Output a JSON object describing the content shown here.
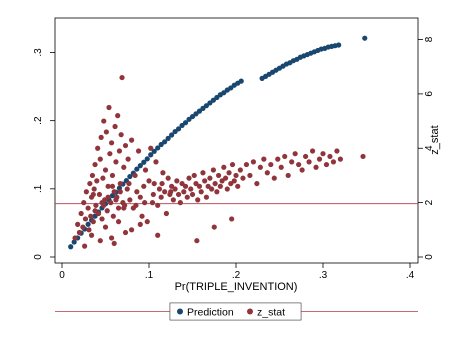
{
  "chart_data": {
    "type": "scatter",
    "title": "",
    "xlabel": "Pr(TRIPLE_INVENTION)",
    "ylabel_left": "",
    "ylabel_right": "z_stat",
    "xlim": [
      0,
      0.4
    ],
    "ylim_left": [
      0,
      0.333
    ],
    "ylim_right": [
      0,
      8.35
    ],
    "x_ticks": [
      {
        "v": 0,
        "label": "0"
      },
      {
        "v": 0.1,
        "label": ".1"
      },
      {
        "v": 0.2,
        "label": ".2"
      },
      {
        "v": 0.3,
        "label": ".3"
      },
      {
        "v": 0.4,
        "label": ".4"
      }
    ],
    "y_left_ticks": [
      {
        "v": 0,
        "label": "0"
      },
      {
        "v": 0.1,
        "label": ".1"
      },
      {
        "v": 0.2,
        "label": ".2"
      },
      {
        "v": 0.3,
        "label": ".3"
      }
    ],
    "y_right_ticks": [
      {
        "v": 0,
        "label": "0"
      },
      {
        "v": 2,
        "label": "2"
      },
      {
        "v": 4,
        "label": "4"
      },
      {
        "v": 6,
        "label": "6"
      },
      {
        "v": 8,
        "label": "8"
      }
    ],
    "reference_line": {
      "axis": "right",
      "value": 1.96,
      "color": "#b03a48"
    },
    "grid": false,
    "legend_position": "bottom",
    "series": [
      {
        "name": "Prediction",
        "axis": "left",
        "color": "#1a476f",
        "points": [
          [
            0.01,
            0.015
          ],
          [
            0.014,
            0.022
          ],
          [
            0.018,
            0.028
          ],
          [
            0.022,
            0.035
          ],
          [
            0.026,
            0.041
          ],
          [
            0.03,
            0.048
          ],
          [
            0.034,
            0.054
          ],
          [
            0.038,
            0.06
          ],
          [
            0.042,
            0.066
          ],
          [
            0.046,
            0.072
          ],
          [
            0.05,
            0.078
          ],
          [
            0.054,
            0.084
          ],
          [
            0.058,
            0.09
          ],
          [
            0.062,
            0.095
          ],
          [
            0.066,
            0.101
          ],
          [
            0.07,
            0.107
          ],
          [
            0.074,
            0.112
          ],
          [
            0.078,
            0.118
          ],
          [
            0.082,
            0.123
          ],
          [
            0.086,
            0.129
          ],
          [
            0.09,
            0.134
          ],
          [
            0.094,
            0.139
          ],
          [
            0.098,
            0.144
          ],
          [
            0.102,
            0.15
          ],
          [
            0.106,
            0.155
          ],
          [
            0.11,
            0.16
          ],
          [
            0.114,
            0.165
          ],
          [
            0.118,
            0.169
          ],
          [
            0.122,
            0.174
          ],
          [
            0.126,
            0.179
          ],
          [
            0.13,
            0.184
          ],
          [
            0.134,
            0.188
          ],
          [
            0.138,
            0.193
          ],
          [
            0.142,
            0.197
          ],
          [
            0.146,
            0.202
          ],
          [
            0.15,
            0.206
          ],
          [
            0.154,
            0.21
          ],
          [
            0.158,
            0.214
          ],
          [
            0.162,
            0.218
          ],
          [
            0.166,
            0.222
          ],
          [
            0.17,
            0.226
          ],
          [
            0.174,
            0.23
          ],
          [
            0.178,
            0.234
          ],
          [
            0.182,
            0.238
          ],
          [
            0.186,
            0.241
          ],
          [
            0.19,
            0.245
          ],
          [
            0.194,
            0.248
          ],
          [
            0.198,
            0.252
          ],
          [
            0.202,
            0.255
          ],
          [
            0.206,
            0.258
          ],
          [
            0.23,
            0.262
          ],
          [
            0.234,
            0.265
          ],
          [
            0.238,
            0.268
          ],
          [
            0.242,
            0.271
          ],
          [
            0.246,
            0.274
          ],
          [
            0.25,
            0.277
          ],
          [
            0.254,
            0.28
          ],
          [
            0.258,
            0.283
          ],
          [
            0.262,
            0.285
          ],
          [
            0.266,
            0.288
          ],
          [
            0.27,
            0.29
          ],
          [
            0.274,
            0.293
          ],
          [
            0.278,
            0.295
          ],
          [
            0.282,
            0.297
          ],
          [
            0.286,
            0.299
          ],
          [
            0.29,
            0.301
          ],
          [
            0.294,
            0.303
          ],
          [
            0.298,
            0.305
          ],
          [
            0.302,
            0.306
          ],
          [
            0.306,
            0.308
          ],
          [
            0.31,
            0.309
          ],
          [
            0.314,
            0.31
          ],
          [
            0.318,
            0.311
          ],
          [
            0.348,
            0.321
          ]
        ]
      },
      {
        "name": "z_stat",
        "axis": "right",
        "color": "#90353b",
        "points": [
          [
            0.015,
            0.7
          ],
          [
            0.018,
            1.2
          ],
          [
            0.02,
            0.9
          ],
          [
            0.022,
            1.6
          ],
          [
            0.024,
            1.1
          ],
          [
            0.025,
            2.0
          ],
          [
            0.027,
            1.4
          ],
          [
            0.028,
            2.4
          ],
          [
            0.03,
            1.8
          ],
          [
            0.031,
            1.0
          ],
          [
            0.032,
            2.7
          ],
          [
            0.033,
            1.5
          ],
          [
            0.034,
            2.2
          ],
          [
            0.035,
            3.0
          ],
          [
            0.036,
            1.3
          ],
          [
            0.037,
            2.5
          ],
          [
            0.038,
            3.4
          ],
          [
            0.039,
            1.9
          ],
          [
            0.04,
            2.8
          ],
          [
            0.041,
            4.0
          ],
          [
            0.042,
            1.6
          ],
          [
            0.043,
            2.3
          ],
          [
            0.044,
            3.6
          ],
          [
            0.045,
            4.4
          ],
          [
            0.046,
            1.4
          ],
          [
            0.047,
            2.9
          ],
          [
            0.048,
            5.0
          ],
          [
            0.049,
            2.1
          ],
          [
            0.05,
            3.2
          ],
          [
            0.051,
            4.6
          ],
          [
            0.052,
            1.7
          ],
          [
            0.053,
            2.6
          ],
          [
            0.054,
            5.5
          ],
          [
            0.055,
            3.8
          ],
          [
            0.056,
            2.0
          ],
          [
            0.057,
            4.2
          ],
          [
            0.058,
            3.0
          ],
          [
            0.059,
            1.5
          ],
          [
            0.06,
            2.4
          ],
          [
            0.061,
            4.8
          ],
          [
            0.062,
            3.5
          ],
          [
            0.063,
            2.2
          ],
          [
            0.064,
            5.2
          ],
          [
            0.065,
            1.8
          ],
          [
            0.066,
            3.9
          ],
          [
            0.067,
            2.7
          ],
          [
            0.068,
            4.5
          ],
          [
            0.069,
            6.6
          ],
          [
            0.07,
            2.0
          ],
          [
            0.071,
            3.3
          ],
          [
            0.072,
            1.9
          ],
          [
            0.073,
            4.1
          ],
          [
            0.075,
            2.5
          ],
          [
            0.076,
            3.6
          ],
          [
            0.078,
            2.1
          ],
          [
            0.08,
            4.3
          ],
          [
            0.082,
            1.8
          ],
          [
            0.084,
            3.0
          ],
          [
            0.086,
            2.4
          ],
          [
            0.088,
            3.9
          ],
          [
            0.09,
            2.2
          ],
          [
            0.092,
            1.5
          ],
          [
            0.094,
            2.6
          ],
          [
            0.096,
            3.2
          ],
          [
            0.098,
            1.3
          ],
          [
            0.1,
            2.8
          ],
          [
            0.102,
            4.0
          ],
          [
            0.104,
            2.0
          ],
          [
            0.106,
            2.7
          ],
          [
            0.108,
            3.5
          ],
          [
            0.11,
            1.9
          ],
          [
            0.112,
            2.5
          ],
          [
            0.114,
            2.2
          ],
          [
            0.116,
            3.1
          ],
          [
            0.118,
            2.4
          ],
          [
            0.12,
            1.6
          ],
          [
            0.122,
            2.9
          ],
          [
            0.124,
            2.3
          ],
          [
            0.126,
            2.6
          ],
          [
            0.128,
            2.1
          ],
          [
            0.13,
            2.5
          ],
          [
            0.132,
            2.8
          ],
          [
            0.134,
            2.3
          ],
          [
            0.136,
            2.0
          ],
          [
            0.138,
            2.7
          ],
          [
            0.14,
            2.4
          ],
          [
            0.142,
            2.6
          ],
          [
            0.144,
            2.2
          ],
          [
            0.146,
            2.9
          ],
          [
            0.148,
            2.5
          ],
          [
            0.15,
            2.3
          ],
          [
            0.152,
            3.0
          ],
          [
            0.154,
            2.7
          ],
          [
            0.156,
            2.1
          ],
          [
            0.158,
            2.6
          ],
          [
            0.16,
            2.4
          ],
          [
            0.162,
            3.1
          ],
          [
            0.164,
            2.8
          ],
          [
            0.166,
            2.2
          ],
          [
            0.168,
            2.6
          ],
          [
            0.17,
            2.9
          ],
          [
            0.172,
            2.5
          ],
          [
            0.174,
            3.2
          ],
          [
            0.176,
            2.7
          ],
          [
            0.178,
            2.4
          ],
          [
            0.18,
            3.0
          ],
          [
            0.182,
            2.6
          ],
          [
            0.184,
            2.8
          ],
          [
            0.186,
            3.3
          ],
          [
            0.188,
            2.9
          ],
          [
            0.19,
            2.5
          ],
          [
            0.192,
            3.1
          ],
          [
            0.194,
            2.7
          ],
          [
            0.196,
            3.4
          ],
          [
            0.198,
            2.8
          ],
          [
            0.2,
            3.0
          ],
          [
            0.202,
            2.6
          ],
          [
            0.205,
            3.2
          ],
          [
            0.208,
            2.9
          ],
          [
            0.212,
            3.4
          ],
          [
            0.216,
            3.0
          ],
          [
            0.22,
            3.5
          ],
          [
            0.224,
            2.7
          ],
          [
            0.228,
            3.3
          ],
          [
            0.232,
            3.6
          ],
          [
            0.236,
            3.1
          ],
          [
            0.24,
            3.4
          ],
          [
            0.244,
            2.9
          ],
          [
            0.248,
            3.6
          ],
          [
            0.252,
            3.3
          ],
          [
            0.256,
            3.7
          ],
          [
            0.26,
            3.0
          ],
          [
            0.264,
            3.5
          ],
          [
            0.268,
            3.8
          ],
          [
            0.272,
            3.4
          ],
          [
            0.276,
            3.2
          ],
          [
            0.28,
            3.7
          ],
          [
            0.284,
            3.5
          ],
          [
            0.288,
            3.9
          ],
          [
            0.292,
            3.3
          ],
          [
            0.296,
            3.6
          ],
          [
            0.3,
            3.8
          ],
          [
            0.304,
            3.4
          ],
          [
            0.308,
            3.7
          ],
          [
            0.312,
            3.5
          ],
          [
            0.316,
            3.9
          ],
          [
            0.32,
            3.6
          ],
          [
            0.346,
            3.7
          ],
          [
            0.06,
            0.5
          ],
          [
            0.034,
            0.8
          ],
          [
            0.05,
            1.1
          ],
          [
            0.073,
            0.9
          ],
          [
            0.044,
            0.6
          ],
          [
            0.026,
            0.4
          ],
          [
            0.065,
            1.3
          ],
          [
            0.057,
            0.7
          ],
          [
            0.08,
            1.0
          ],
          [
            0.09,
            1.2
          ],
          [
            0.11,
            0.8
          ],
          [
            0.155,
            0.6
          ],
          [
            0.175,
            1.1
          ],
          [
            0.195,
            1.4
          ],
          [
            0.038,
            1.7
          ],
          [
            0.048,
            1.9
          ],
          [
            0.062,
            2.1
          ],
          [
            0.071,
            1.8
          ],
          [
            0.053,
            2.2
          ],
          [
            0.046,
            2.0
          ],
          [
            0.036,
            2.3
          ],
          [
            0.058,
            2.6
          ],
          [
            0.067,
            2.4
          ],
          [
            0.077,
            2.7
          ],
          [
            0.085,
            1.9
          ],
          [
            0.095,
            2.0
          ],
          [
            0.105,
            2.3
          ],
          [
            0.115,
            2.7
          ],
          [
            0.125,
            2.4
          ]
        ]
      }
    ]
  },
  "legend": {
    "items": [
      {
        "label": "Prediction",
        "color": "#1a476f"
      },
      {
        "label": "z_stat",
        "color": "#90353b"
      }
    ]
  }
}
